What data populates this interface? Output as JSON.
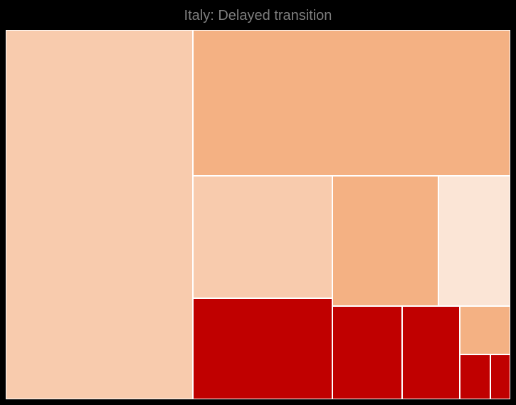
{
  "chart_data": {
    "type": "treemap",
    "title": "Italy: Delayed transition",
    "tiles": [
      {
        "value": 138.2,
        "color": "#f8cbad"
      },
      {
        "value": 93.0,
        "color": "#f4b183"
      },
      {
        "value": 34.1,
        "color": "#f8cbad"
      },
      {
        "value": 28.4,
        "color": "#c00000"
      },
      {
        "value": 27.6,
        "color": "#f4b183"
      },
      {
        "value": 18.7,
        "color": "#fbe5d6"
      },
      {
        "value": 12.9,
        "color": "#c00000"
      },
      {
        "value": 10.8,
        "color": "#c00000"
      },
      {
        "value": 4.9,
        "color": "#f4b183"
      },
      {
        "value": 2.7,
        "color": "#c00000"
      },
      {
        "value": 1.8,
        "color": "#c00000"
      }
    ]
  }
}
